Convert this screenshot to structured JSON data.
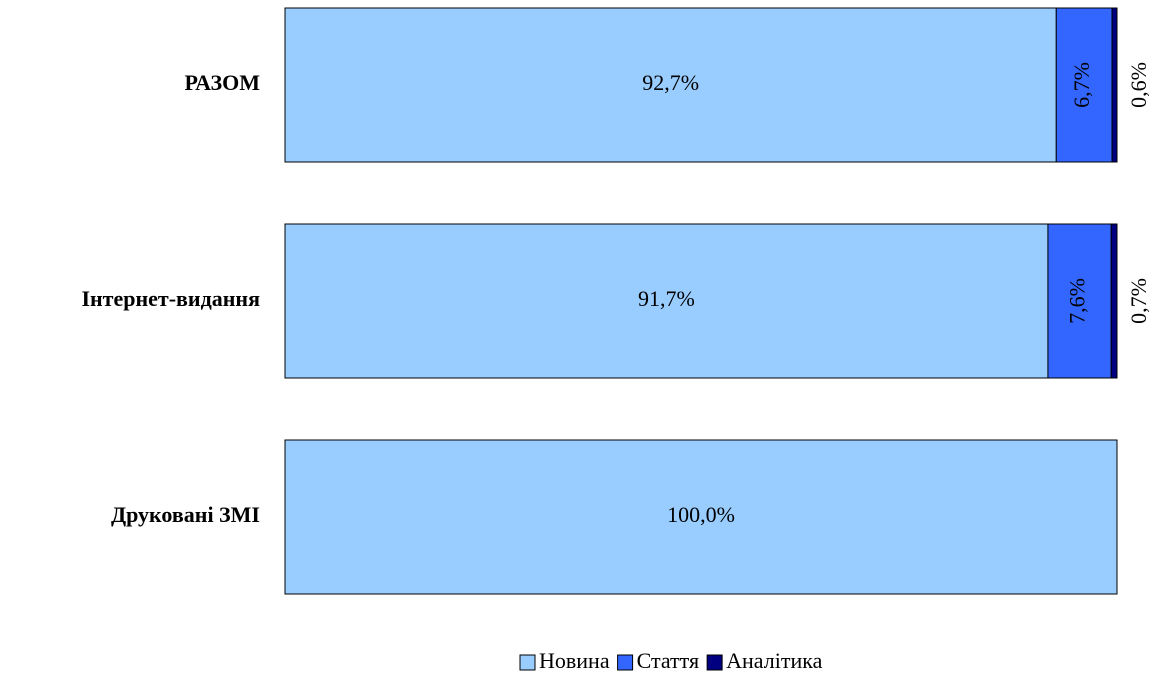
{
  "chart_data": {
    "type": "stacked-bar-horizontal",
    "categories": [
      "РАЗОМ",
      "Інтернет-видання",
      "Друковані ЗМІ"
    ],
    "series": [
      {
        "name": "Новина",
        "color": "#99ccff",
        "values": [
          92.7,
          91.7,
          100.0
        ],
        "value_labels": [
          "92,7%",
          "91,7%",
          "100,0%"
        ]
      },
      {
        "name": "Стаття",
        "color": "#3366ff",
        "values": [
          6.7,
          7.6,
          0
        ],
        "value_labels": [
          "6,7%",
          "7,6%",
          null
        ]
      },
      {
        "name": "Аналітика",
        "color": "#000080",
        "values": [
          0.6,
          0.7,
          0
        ],
        "value_labels": [
          "0,6%",
          "0,7%",
          null
        ]
      }
    ]
  }
}
